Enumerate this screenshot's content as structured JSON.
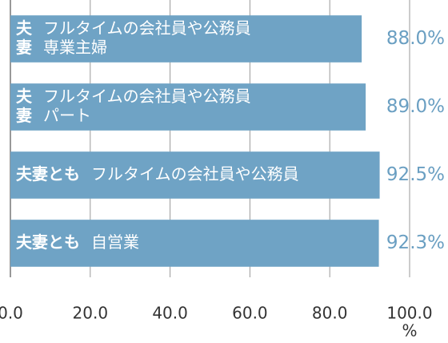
{
  "chart_data": {
    "type": "barh",
    "categories": [
      {
        "who": [
          "夫",
          "妻"
        ],
        "lines": [
          "フルタイムの会社員や公務員",
          "専業主婦"
        ]
      },
      {
        "who": [
          "夫",
          "妻"
        ],
        "lines": [
          "フルタイムの会社員や公務員",
          "パート"
        ]
      },
      {
        "who": [
          "夫妻とも"
        ],
        "lines": [
          "フルタイムの会社員や公務員"
        ]
      },
      {
        "who": [
          "夫妻とも"
        ],
        "lines": [
          "自営業"
        ]
      }
    ],
    "values": [
      88.0,
      89.0,
      92.5,
      92.3
    ],
    "value_labels": [
      "88.0%",
      "89.0%",
      "92.5%",
      "92.3%"
    ],
    "color": "#6fa3c5",
    "xlim": [
      0,
      100
    ],
    "xticks": [
      {
        "value": 0,
        "label": "0.0"
      },
      {
        "value": 20,
        "label": "20.0"
      },
      {
        "value": 40,
        "label": "40.0"
      },
      {
        "value": 60,
        "label": "60.0"
      },
      {
        "value": 80,
        "label": "80.0"
      },
      {
        "value": 100,
        "label": "100.0"
      }
    ],
    "xunit": "%",
    "grid": true
  }
}
